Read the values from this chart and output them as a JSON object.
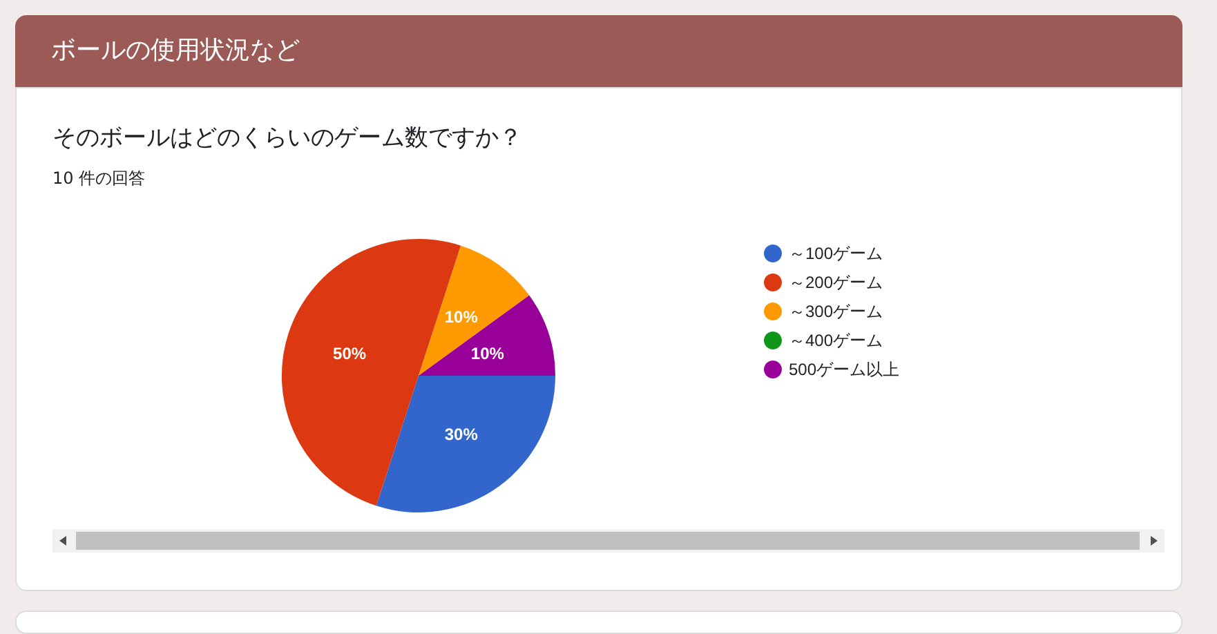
{
  "chart_data": {
    "type": "pie",
    "title": "ボールの使用状況など",
    "subtitle": "そのボールはどのくらいのゲーム数ですか？",
    "annotations": [
      "10 件の回答"
    ],
    "categories": [
      "～100ゲーム",
      "～200ゲーム",
      "～300ゲーム",
      "～400ゲーム",
      "500ゲーム以上"
    ],
    "values": [
      30,
      50,
      10,
      0,
      10
    ],
    "colors": [
      "#3366cc",
      "#dc3912",
      "#ff9900",
      "#109618",
      "#990099"
    ],
    "value_labels": [
      "30%",
      "50%",
      "10%",
      null,
      "10%"
    ],
    "legend": "right"
  }
}
